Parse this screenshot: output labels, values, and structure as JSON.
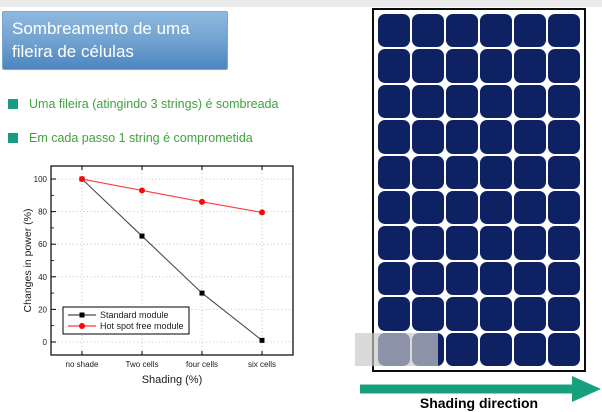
{
  "slide": {
    "title": "Sombreamento de uma fileira de células",
    "bullets": [
      "Uma fileira (atingindo 3 strings) é sombreada",
      "Em cada passo 1 string é comprometida"
    ]
  },
  "chart_data": {
    "type": "line",
    "categories": [
      "no shade",
      "Two cells",
      "four cells",
      "six cells"
    ],
    "series": [
      {
        "name": "Standard module",
        "marker": "square",
        "color": "#000000",
        "line_color": "#4a4a4a",
        "values": [
          100,
          65,
          30,
          1
        ]
      },
      {
        "name": "Hot spot free module",
        "marker": "circle",
        "color": "#f90808",
        "line_color": "#fb3b3b",
        "values": [
          100,
          93,
          86,
          79.5
        ]
      }
    ],
    "xlabel": "Shading (%)",
    "ylabel": "Changes in power (%)",
    "yticks": [
      0,
      20,
      40,
      60,
      80,
      100
    ],
    "ylim": [
      -8,
      108
    ],
    "grid": "dotted",
    "legend_position": "bottom-left"
  },
  "panel": {
    "rows": 10,
    "cols": 6,
    "cell_color": "#0e2163",
    "shaded_row": 10,
    "shaded_cells": 1.6
  },
  "arrow": {
    "label": "Shading direction",
    "color": "#18a07e"
  },
  "colors": {
    "title_gradient_top": "#8fb9df",
    "title_gradient_bottom": "#4b85c1",
    "bullet_square": "#189b80",
    "bullet_text": "#3fa23f",
    "top_strip": "#ebebeb"
  }
}
